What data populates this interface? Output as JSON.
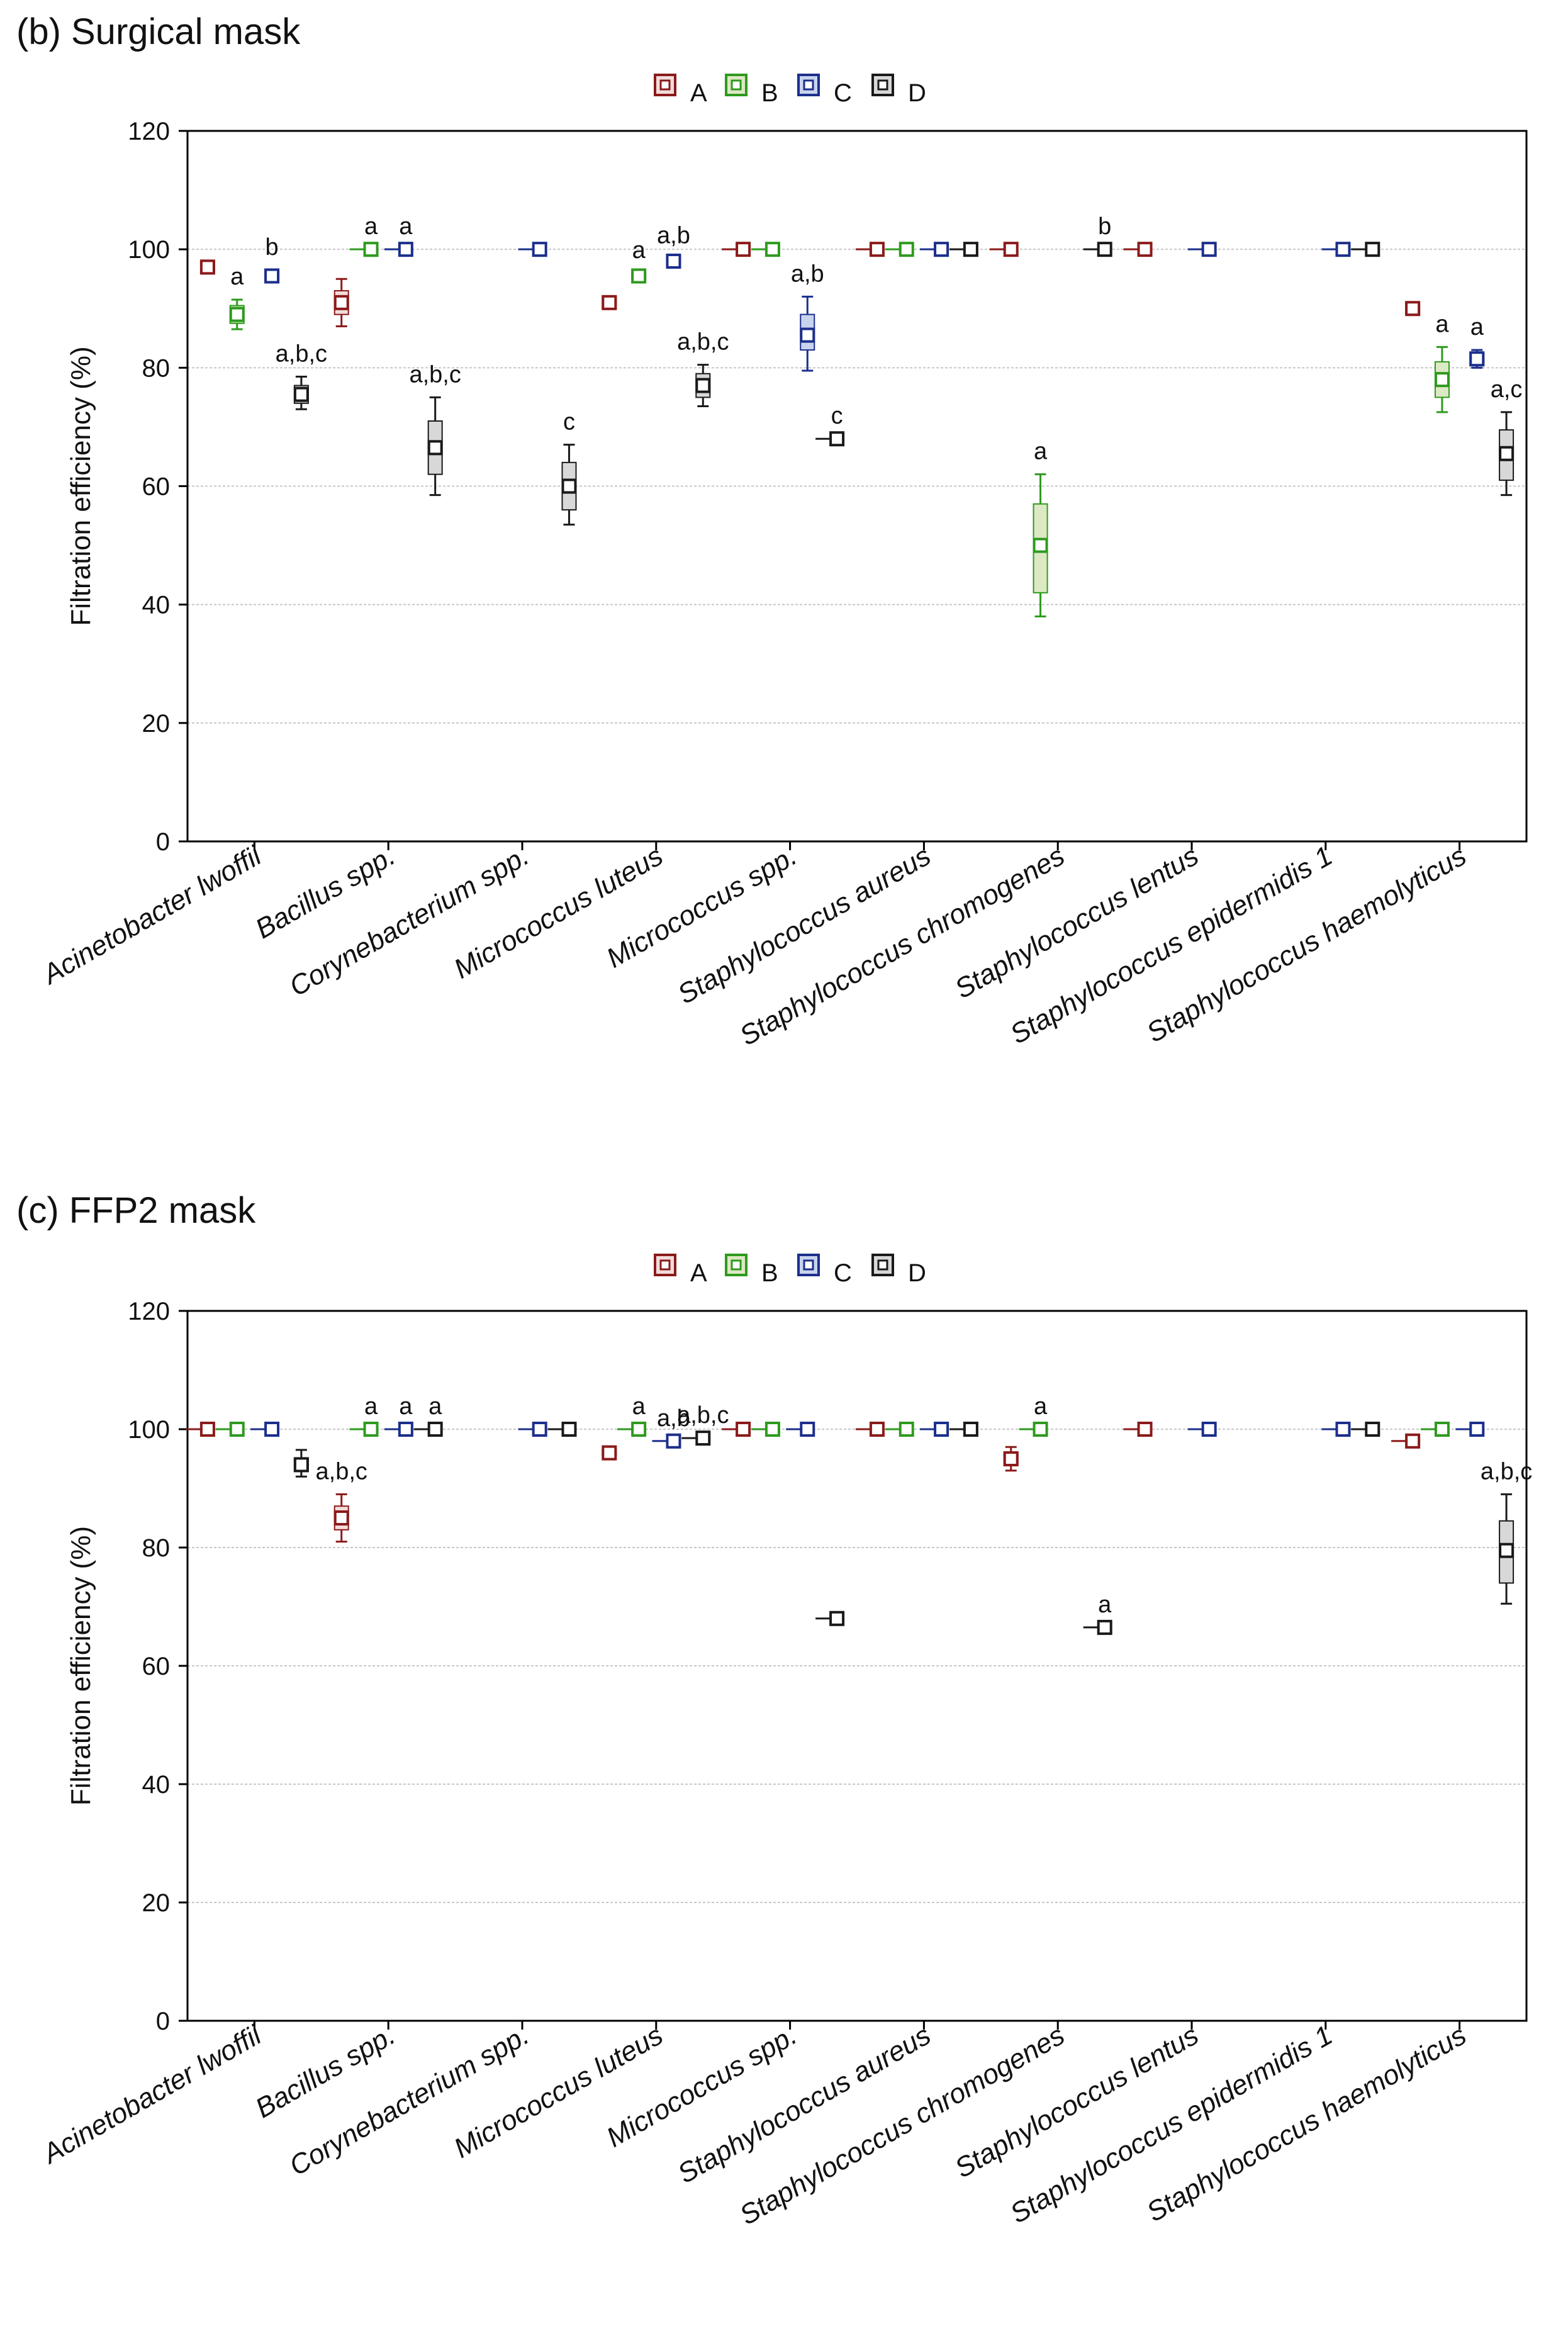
{
  "colors": {
    "A": "#8b1a1a",
    "B": "#2e9a1e",
    "C": "#1c2f8c",
    "D": "#1a1a1a",
    "A_fill": "#f2dcdc",
    "B_fill": "#dde8c4",
    "C_fill": "#c8d3ee",
    "D_fill": "#d8d8d8",
    "grid": "#c8c8c8",
    "axis": "#000000"
  },
  "chart_data": [
    {
      "type": "box",
      "title": "(b) Surgical mask",
      "ylabel": "Filtration efficiency (%)",
      "xlabel": "",
      "ylim": [
        0,
        120
      ],
      "yticks": [
        0,
        20,
        40,
        60,
        80,
        100,
        120
      ],
      "grid": true,
      "legend_position": "top-center",
      "categories": [
        "Acinetobacter lwoffii",
        "Bacillus spp.",
        "Corynebacterium spp.",
        "Micrococcus luteus",
        "Micrococcus spp.",
        "Staphylococcus aureus",
        "Staphylococcus chromogenes",
        "Staphylococcus lentus",
        "Staphylococcus epidermidis 1",
        "Staphylococcus haemolyticus"
      ],
      "series": [
        {
          "name": "A",
          "values": [
            {
              "median": 97,
              "q1": 96,
              "q3": 98,
              "min": 96,
              "max": 98,
              "label": ""
            },
            {
              "median": 91,
              "q1": 89,
              "q3": 93,
              "min": 87,
              "max": 95,
              "label": ""
            },
            null,
            {
              "median": 91,
              "q1": 90,
              "q3": 92,
              "min": 90,
              "max": 92,
              "label": ""
            },
            {
              "median": 100,
              "q1": 100,
              "q3": 100,
              "min": 100,
              "max": 100,
              "label": ""
            },
            {
              "median": 100,
              "q1": 100,
              "q3": 100,
              "min": 100,
              "max": 100,
              "label": ""
            },
            {
              "median": 100,
              "q1": 100,
              "q3": 100,
              "min": 100,
              "max": 100,
              "label": ""
            },
            {
              "median": 100,
              "q1": 100,
              "q3": 100,
              "min": 100,
              "max": 100,
              "label": ""
            },
            null,
            {
              "median": 90,
              "q1": 89,
              "q3": 91,
              "min": 89,
              "max": 91,
              "label": ""
            }
          ]
        },
        {
          "name": "B",
          "values": [
            {
              "median": 89,
              "q1": 87.5,
              "q3": 90.5,
              "min": 86.5,
              "max": 91.5,
              "label": "a"
            },
            {
              "median": 100,
              "q1": 100,
              "q3": 100,
              "min": 100,
              "max": 100,
              "label": "a"
            },
            null,
            {
              "median": 95.5,
              "q1": 95,
              "q3": 96,
              "min": 95,
              "max": 96,
              "label": "a"
            },
            {
              "median": 100,
              "q1": 100,
              "q3": 100,
              "min": 100,
              "max": 100,
              "label": ""
            },
            {
              "median": 100,
              "q1": 100,
              "q3": 100,
              "min": 100,
              "max": 100,
              "label": ""
            },
            {
              "median": 50,
              "q1": 42,
              "q3": 57,
              "min": 38,
              "max": 62,
              "label": "a"
            },
            null,
            null,
            {
              "median": 78,
              "q1": 75,
              "q3": 81,
              "min": 72.5,
              "max": 83.5,
              "label": "a"
            }
          ]
        },
        {
          "name": "C",
          "values": [
            {
              "median": 95.5,
              "q1": 94.5,
              "q3": 96.5,
              "min": 94.5,
              "max": 96.5,
              "label": "b"
            },
            {
              "median": 100,
              "q1": 100,
              "q3": 100,
              "min": 100,
              "max": 100,
              "label": "a"
            },
            {
              "median": 100,
              "q1": 100,
              "q3": 100,
              "min": 100,
              "max": 100,
              "label": ""
            },
            {
              "median": 98,
              "q1": 97.5,
              "q3": 98.5,
              "min": 97.5,
              "max": 98.5,
              "label": "a,b"
            },
            {
              "median": 85.5,
              "q1": 83,
              "q3": 89,
              "min": 79.5,
              "max": 92,
              "label": "a,b"
            },
            {
              "median": 100,
              "q1": 100,
              "q3": 100,
              "min": 100,
              "max": 100,
              "label": ""
            },
            null,
            {
              "median": 100,
              "q1": 100,
              "q3": 100,
              "min": 100,
              "max": 100,
              "label": ""
            },
            {
              "median": 100,
              "q1": 100,
              "q3": 100,
              "min": 100,
              "max": 100,
              "label": ""
            },
            {
              "median": 81.5,
              "q1": 80.5,
              "q3": 82.5,
              "min": 80,
              "max": 83,
              "label": "a"
            }
          ]
        },
        {
          "name": "D",
          "values": [
            {
              "median": 75.5,
              "q1": 74,
              "q3": 77,
              "min": 73,
              "max": 78.5,
              "label": "a,b,c"
            },
            {
              "median": 66.5,
              "q1": 62,
              "q3": 71,
              "min": 58.5,
              "max": 75,
              "label": "a,b,c"
            },
            {
              "median": 60,
              "q1": 56,
              "q3": 64,
              "min": 53.5,
              "max": 67,
              "label": "c"
            },
            {
              "median": 77,
              "q1": 75,
              "q3": 79,
              "min": 73.5,
              "max": 80.5,
              "label": "a,b,c"
            },
            {
              "median": 68,
              "q1": 68,
              "q3": 68,
              "min": 68,
              "max": 68,
              "label": "c"
            },
            {
              "median": 100,
              "q1": 100,
              "q3": 100,
              "min": 100,
              "max": 100,
              "label": ""
            },
            {
              "median": 100,
              "q1": 100,
              "q3": 100,
              "min": 100,
              "max": 100,
              "label": "b"
            },
            null,
            {
              "median": 100,
              "q1": 100,
              "q3": 100,
              "min": 100,
              "max": 100,
              "label": ""
            },
            {
              "median": 65.5,
              "q1": 61,
              "q3": 69.5,
              "min": 58.5,
              "max": 72.5,
              "label": "a,c"
            }
          ]
        }
      ]
    },
    {
      "type": "box",
      "title": "(c) FFP2 mask",
      "ylabel": "Filtration efficiency (%)",
      "xlabel": "",
      "ylim": [
        0,
        120
      ],
      "yticks": [
        0,
        20,
        40,
        60,
        80,
        100,
        120
      ],
      "grid": true,
      "legend_position": "top-center",
      "categories": [
        "Acinetobacter lwoffii",
        "Bacillus spp.",
        "Corynebacterium spp.",
        "Micrococcus luteus",
        "Micrococcus spp.",
        "Staphylococcus aureus",
        "Staphylococcus chromogenes",
        "Staphylococcus lentus",
        "Staphylococcus epidermidis 1",
        "Staphylococcus haemolyticus"
      ],
      "series": [
        {
          "name": "A",
          "values": [
            {
              "median": 100,
              "q1": 100,
              "q3": 100,
              "min": 100,
              "max": 100,
              "label": ""
            },
            {
              "median": 85,
              "q1": 83,
              "q3": 87,
              "min": 81,
              "max": 89,
              "label": "a,b,c"
            },
            null,
            {
              "median": 96,
              "q1": 95.5,
              "q3": 96.5,
              "min": 95.5,
              "max": 96.5,
              "label": ""
            },
            {
              "median": 100,
              "q1": 100,
              "q3": 100,
              "min": 100,
              "max": 100,
              "label": ""
            },
            {
              "median": 100,
              "q1": 100,
              "q3": 100,
              "min": 100,
              "max": 100,
              "label": ""
            },
            {
              "median": 95,
              "q1": 94,
              "q3": 96,
              "min": 93,
              "max": 97,
              "label": ""
            },
            {
              "median": 100,
              "q1": 100,
              "q3": 100,
              "min": 100,
              "max": 100,
              "label": ""
            },
            null,
            {
              "median": 98,
              "q1": 98,
              "q3": 98,
              "min": 98,
              "max": 98,
              "label": ""
            }
          ]
        },
        {
          "name": "B",
          "values": [
            {
              "median": 100,
              "q1": 100,
              "q3": 100,
              "min": 100,
              "max": 100,
              "label": ""
            },
            {
              "median": 100,
              "q1": 100,
              "q3": 100,
              "min": 100,
              "max": 100,
              "label": "a"
            },
            null,
            {
              "median": 100,
              "q1": 100,
              "q3": 100,
              "min": 100,
              "max": 100,
              "label": "a"
            },
            {
              "median": 100,
              "q1": 100,
              "q3": 100,
              "min": 100,
              "max": 100,
              "label": ""
            },
            {
              "median": 100,
              "q1": 100,
              "q3": 100,
              "min": 100,
              "max": 100,
              "label": ""
            },
            {
              "median": 100,
              "q1": 100,
              "q3": 100,
              "min": 100,
              "max": 100,
              "label": "a"
            },
            null,
            null,
            {
              "median": 100,
              "q1": 100,
              "q3": 100,
              "min": 100,
              "max": 100,
              "label": ""
            }
          ]
        },
        {
          "name": "C",
          "values": [
            {
              "median": 100,
              "q1": 100,
              "q3": 100,
              "min": 100,
              "max": 100,
              "label": ""
            },
            {
              "median": 100,
              "q1": 100,
              "q3": 100,
              "min": 100,
              "max": 100,
              "label": "a"
            },
            {
              "median": 100,
              "q1": 100,
              "q3": 100,
              "min": 100,
              "max": 100,
              "label": ""
            },
            {
              "median": 98,
              "q1": 98,
              "q3": 98,
              "min": 98,
              "max": 98,
              "label": "a,b"
            },
            {
              "median": 100,
              "q1": 100,
              "q3": 100,
              "min": 100,
              "max": 100,
              "label": ""
            },
            {
              "median": 100,
              "q1": 100,
              "q3": 100,
              "min": 100,
              "max": 100,
              "label": ""
            },
            null,
            {
              "median": 100,
              "q1": 100,
              "q3": 100,
              "min": 100,
              "max": 100,
              "label": ""
            },
            {
              "median": 100,
              "q1": 100,
              "q3": 100,
              "min": 100,
              "max": 100,
              "label": ""
            },
            {
              "median": 100,
              "q1": 100,
              "q3": 100,
              "min": 100,
              "max": 100,
              "label": ""
            }
          ]
        },
        {
          "name": "D",
          "values": [
            {
              "median": 94,
              "q1": 93,
              "q3": 95,
              "min": 92,
              "max": 96.5,
              "label": ""
            },
            {
              "median": 100,
              "q1": 100,
              "q3": 100,
              "min": 100,
              "max": 100,
              "label": "a"
            },
            {
              "median": 100,
              "q1": 100,
              "q3": 100,
              "min": 100,
              "max": 100,
              "label": ""
            },
            {
              "median": 98.5,
              "q1": 98.5,
              "q3": 98.5,
              "min": 98.5,
              "max": 98.5,
              "label": "a,b,c"
            },
            {
              "median": 68,
              "q1": 68,
              "q3": 68,
              "min": 68,
              "max": 68,
              "label": ""
            },
            {
              "median": 100,
              "q1": 100,
              "q3": 100,
              "min": 100,
              "max": 100,
              "label": ""
            },
            {
              "median": 66.5,
              "q1": 66.5,
              "q3": 66.5,
              "min": 66.5,
              "max": 66.5,
              "label": "a"
            },
            null,
            {
              "median": 100,
              "q1": 100,
              "q3": 100,
              "min": 100,
              "max": 100,
              "label": ""
            },
            {
              "median": 79.5,
              "q1": 74,
              "q3": 84.5,
              "min": 70.5,
              "max": 89,
              "label": "a,b,c"
            }
          ]
        }
      ]
    }
  ]
}
